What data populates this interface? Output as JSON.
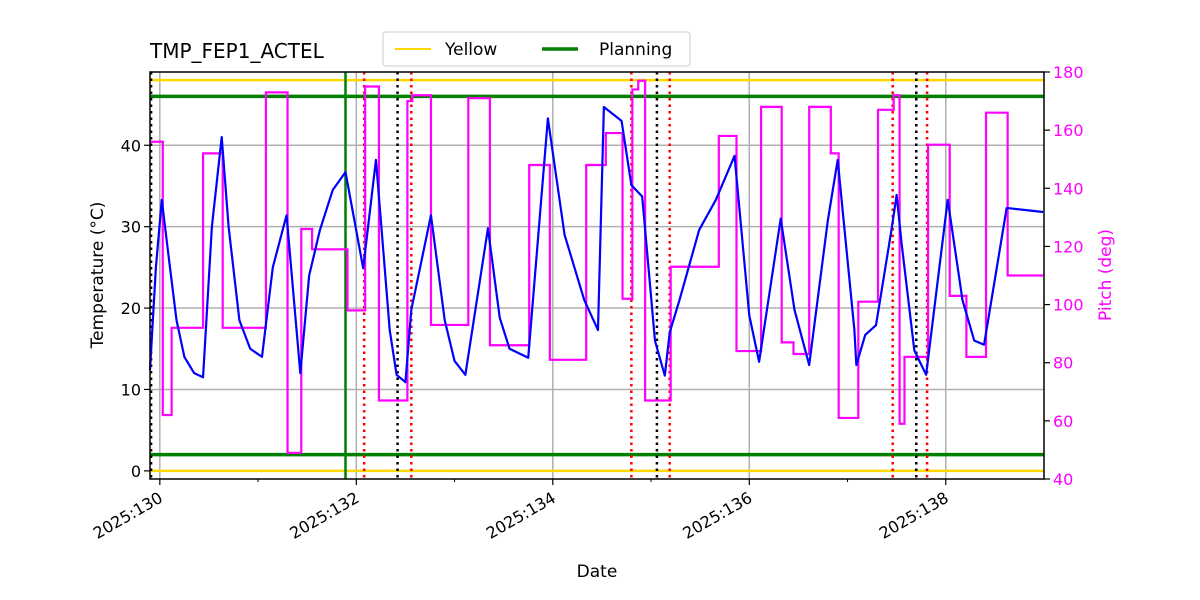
{
  "chart_data": {
    "type": "line",
    "title": "TMP_FEP1_ACTEL",
    "xlabel": "Date",
    "ylabel": "Temperature (°C)",
    "y2label": "Pitch (deg)",
    "xlim": [
      129.9,
      139.0
    ],
    "ylim": [
      -1,
      49
    ],
    "y2lim": [
      40,
      180
    ],
    "grid": true,
    "legend_placement": "top-center",
    "x_ticks": [
      {
        "v": 130,
        "label": "2025:130"
      },
      {
        "v": 132,
        "label": "2025:132"
      },
      {
        "v": 134,
        "label": "2025:134"
      },
      {
        "v": 136,
        "label": "2025:136"
      },
      {
        "v": 138,
        "label": "2025:138"
      }
    ],
    "x_minor_ticks": [
      131,
      133,
      135,
      137
    ],
    "y_ticks": [
      {
        "v": 0,
        "label": "0"
      },
      {
        "v": 10,
        "label": "10"
      },
      {
        "v": 20,
        "label": "20"
      },
      {
        "v": 30,
        "label": "30"
      },
      {
        "v": 40,
        "label": "40"
      }
    ],
    "y2_ticks": [
      {
        "v": 40,
        "label": "40"
      },
      {
        "v": 60,
        "label": "60"
      },
      {
        "v": 80,
        "label": "80"
      },
      {
        "v": 100,
        "label": "100"
      },
      {
        "v": 120,
        "label": "120"
      },
      {
        "v": 140,
        "label": "140"
      },
      {
        "v": 160,
        "label": "160"
      },
      {
        "v": 180,
        "label": "180"
      }
    ],
    "colors": {
      "temperature": "#0000ff",
      "pitch": "#ff00ff",
      "yellow": "#ffd700",
      "planning": "#008000",
      "red_marker": "#ff0000",
      "black_marker": "#000000"
    },
    "legend": [
      {
        "label": "Yellow",
        "color": "#ffd700"
      },
      {
        "label": "Planning",
        "color": "#008000"
      }
    ],
    "limit_lines": [
      {
        "kind": "yellow",
        "value": 48
      },
      {
        "kind": "yellow",
        "value": 0
      },
      {
        "kind": "planning",
        "value": 46
      },
      {
        "kind": "planning",
        "value": 2
      }
    ],
    "vertical_lines": [
      {
        "kind": "planning",
        "x": 131.89,
        "style": "solid"
      },
      {
        "kind": "red_marker",
        "x": 129.91,
        "style": "dotted"
      },
      {
        "kind": "black_marker",
        "x": 129.91,
        "style": "dotted"
      },
      {
        "kind": "red_marker",
        "x": 132.08,
        "style": "dotted"
      },
      {
        "kind": "black_marker",
        "x": 132.42,
        "style": "dotted"
      },
      {
        "kind": "red_marker",
        "x": 132.56,
        "style": "dotted"
      },
      {
        "kind": "red_marker",
        "x": 134.8,
        "style": "dotted"
      },
      {
        "kind": "black_marker",
        "x": 135.06,
        "style": "dotted"
      },
      {
        "kind": "red_marker",
        "x": 135.19,
        "style": "dotted"
      },
      {
        "kind": "red_marker",
        "x": 137.46,
        "style": "dotted"
      },
      {
        "kind": "black_marker",
        "x": 137.7,
        "style": "dotted"
      },
      {
        "kind": "red_marker",
        "x": 137.81,
        "style": "dotted"
      }
    ],
    "temperature": [
      [
        129.9,
        12.4
      ],
      [
        129.96,
        25
      ],
      [
        130.02,
        33.3
      ],
      [
        130.1,
        25.3
      ],
      [
        130.17,
        18.5
      ],
      [
        130.25,
        14
      ],
      [
        130.35,
        12
      ],
      [
        130.44,
        11.5
      ],
      [
        130.53,
        30
      ],
      [
        130.63,
        41
      ],
      [
        130.7,
        30
      ],
      [
        130.81,
        18.5
      ],
      [
        130.92,
        15
      ],
      [
        131.04,
        14
      ],
      [
        131.15,
        25
      ],
      [
        131.29,
        31.4
      ],
      [
        131.43,
        12
      ],
      [
        131.52,
        24
      ],
      [
        131.63,
        29.6
      ],
      [
        131.76,
        34.5
      ],
      [
        131.89,
        36.7
      ],
      [
        132.07,
        24.9
      ],
      [
        132.2,
        38.2
      ],
      [
        132.34,
        17.3
      ],
      [
        132.41,
        11.8
      ],
      [
        132.5,
        10.9
      ],
      [
        132.56,
        19.8
      ],
      [
        132.76,
        31.4
      ],
      [
        132.9,
        18.5
      ],
      [
        133.0,
        13.5
      ],
      [
        133.11,
        11.8
      ],
      [
        133.34,
        29.8
      ],
      [
        133.46,
        18.8
      ],
      [
        133.56,
        15
      ],
      [
        133.75,
        13.9
      ],
      [
        133.95,
        43.3
      ],
      [
        134.12,
        29
      ],
      [
        134.32,
        21
      ],
      [
        134.46,
        17.3
      ],
      [
        134.52,
        44.7
      ],
      [
        134.7,
        43
      ],
      [
        134.8,
        35.1
      ],
      [
        134.91,
        33.7
      ],
      [
        135.04,
        16
      ],
      [
        135.14,
        11.7
      ],
      [
        135.19,
        17
      ],
      [
        135.29,
        21
      ],
      [
        135.49,
        29.6
      ],
      [
        135.66,
        33.3
      ],
      [
        135.85,
        38.7
      ],
      [
        136.0,
        19.1
      ],
      [
        136.1,
        13.4
      ],
      [
        136.32,
        31
      ],
      [
        136.46,
        19.8
      ],
      [
        136.61,
        13
      ],
      [
        136.8,
        30.8
      ],
      [
        136.9,
        38.2
      ],
      [
        137.07,
        17.3
      ],
      [
        137.09,
        13
      ],
      [
        137.18,
        16.7
      ],
      [
        137.29,
        17.9
      ],
      [
        137.45,
        29.8
      ],
      [
        137.5,
        33.9
      ],
      [
        137.55,
        28
      ],
      [
        137.68,
        14.8
      ],
      [
        137.8,
        11.8
      ],
      [
        138.02,
        33.3
      ],
      [
        138.17,
        21
      ],
      [
        138.29,
        16
      ],
      [
        138.39,
        15.5
      ],
      [
        138.62,
        32.3
      ],
      [
        138.99,
        31.8
      ]
    ],
    "pitch_steps": [
      [
        129.9,
        156
      ],
      [
        130.03,
        62
      ],
      [
        130.12,
        92
      ],
      [
        130.44,
        152
      ],
      [
        130.64,
        92
      ],
      [
        131.08,
        173
      ],
      [
        131.3,
        49
      ],
      [
        131.44,
        126
      ],
      [
        131.55,
        119
      ],
      [
        131.91,
        98
      ],
      [
        132.09,
        175
      ],
      [
        132.23,
        67
      ],
      [
        132.52,
        170
      ],
      [
        132.57,
        172
      ],
      [
        132.76,
        93
      ],
      [
        133.14,
        171
      ],
      [
        133.36,
        86
      ],
      [
        133.76,
        148
      ],
      [
        133.97,
        81
      ],
      [
        134.34,
        148
      ],
      [
        134.54,
        159
      ],
      [
        134.71,
        102
      ],
      [
        134.81,
        174
      ],
      [
        134.87,
        177
      ],
      [
        134.94,
        67
      ],
      [
        135.2,
        113
      ],
      [
        135.69,
        158
      ],
      [
        135.87,
        84
      ],
      [
        136.12,
        168
      ],
      [
        136.33,
        87
      ],
      [
        136.45,
        83
      ],
      [
        136.61,
        168
      ],
      [
        136.83,
        152
      ],
      [
        136.91,
        61
      ],
      [
        137.11,
        101
      ],
      [
        137.31,
        167
      ],
      [
        137.47,
        172
      ],
      [
        137.53,
        59
      ],
      [
        137.58,
        82
      ],
      [
        137.82,
        155
      ],
      [
        138.04,
        103
      ],
      [
        138.21,
        82
      ],
      [
        138.41,
        166
      ],
      [
        138.63,
        110
      ],
      [
        138.99,
        110
      ]
    ]
  }
}
